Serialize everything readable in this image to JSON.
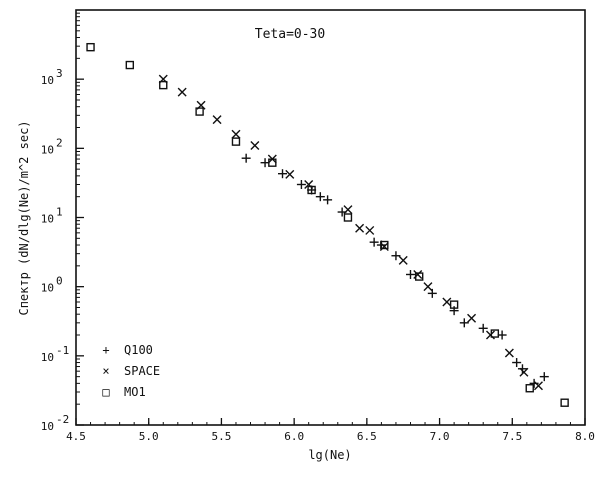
{
  "chart_data": {
    "type": "scatter",
    "title": "Teta=0-30",
    "xlabel": "lg(Ne)",
    "ylabel": "Спектр (dN/dlg(Ne)/m^2 sec)",
    "xlim": [
      4.5,
      8.0
    ],
    "ylim": [
      0.01,
      10000
    ],
    "yscale": "log",
    "grid": false,
    "legend_position": "bottom-left",
    "x_ticks": [
      "4.5",
      "5.0",
      "5.5",
      "6.0",
      "6.5",
      "7.0",
      "7.5",
      "8.0"
    ],
    "y_ticks": [
      {
        "base": "10",
        "exp": "-2",
        "value": 0.01
      },
      {
        "base": "10",
        "exp": "-1",
        "value": 0.1
      },
      {
        "base": "10",
        "exp": "0",
        "value": 1
      },
      {
        "base": "10",
        "exp": "1",
        "value": 10
      },
      {
        "base": "10",
        "exp": "2",
        "value": 100
      },
      {
        "base": "10",
        "exp": "3",
        "value": 1000
      }
    ],
    "series": [
      {
        "name": "Q100",
        "marker": "plus",
        "points": [
          {
            "x": 5.67,
            "y": 72
          },
          {
            "x": 5.8,
            "y": 62
          },
          {
            "x": 5.92,
            "y": 43
          },
          {
            "x": 6.05,
            "y": 30
          },
          {
            "x": 6.12,
            "y": 25
          },
          {
            "x": 6.18,
            "y": 20
          },
          {
            "x": 6.23,
            "y": 18
          },
          {
            "x": 6.33,
            "y": 12
          },
          {
            "x": 6.55,
            "y": 4.4
          },
          {
            "x": 6.6,
            "y": 4.0
          },
          {
            "x": 6.7,
            "y": 2.8
          },
          {
            "x": 6.8,
            "y": 1.5
          },
          {
            "x": 6.95,
            "y": 0.8
          },
          {
            "x": 7.1,
            "y": 0.45
          },
          {
            "x": 7.17,
            "y": 0.3
          },
          {
            "x": 7.3,
            "y": 0.25
          },
          {
            "x": 7.43,
            "y": 0.2
          },
          {
            "x": 7.53,
            "y": 0.08
          },
          {
            "x": 7.57,
            "y": 0.065
          },
          {
            "x": 7.65,
            "y": 0.04
          },
          {
            "x": 7.72,
            "y": 0.05
          }
        ]
      },
      {
        "name": "SPACE",
        "marker": "cross",
        "points": [
          {
            "x": 5.1,
            "y": 1000
          },
          {
            "x": 5.23,
            "y": 650
          },
          {
            "x": 5.36,
            "y": 420
          },
          {
            "x": 5.47,
            "y": 260
          },
          {
            "x": 5.6,
            "y": 160
          },
          {
            "x": 5.73,
            "y": 110
          },
          {
            "x": 5.85,
            "y": 70
          },
          {
            "x": 5.97,
            "y": 42
          },
          {
            "x": 6.1,
            "y": 30
          },
          {
            "x": 6.37,
            "y": 13
          },
          {
            "x": 6.45,
            "y": 7
          },
          {
            "x": 6.52,
            "y": 6.5
          },
          {
            "x": 6.62,
            "y": 3.8
          },
          {
            "x": 6.75,
            "y": 2.4
          },
          {
            "x": 6.85,
            "y": 1.5
          },
          {
            "x": 6.92,
            "y": 1.0
          },
          {
            "x": 7.05,
            "y": 0.6
          },
          {
            "x": 7.22,
            "y": 0.35
          },
          {
            "x": 7.35,
            "y": 0.2
          },
          {
            "x": 7.48,
            "y": 0.11
          },
          {
            "x": 7.58,
            "y": 0.058
          },
          {
            "x": 7.68,
            "y": 0.037
          }
        ]
      },
      {
        "name": "MO1",
        "marker": "square",
        "points": [
          {
            "x": 4.6,
            "y": 2900
          },
          {
            "x": 4.87,
            "y": 1600
          },
          {
            "x": 5.1,
            "y": 820
          },
          {
            "x": 5.35,
            "y": 340
          },
          {
            "x": 5.6,
            "y": 125
          },
          {
            "x": 5.85,
            "y": 62
          },
          {
            "x": 6.12,
            "y": 25
          },
          {
            "x": 6.37,
            "y": 10
          },
          {
            "x": 6.62,
            "y": 4.0
          },
          {
            "x": 6.86,
            "y": 1.4
          },
          {
            "x": 7.1,
            "y": 0.55
          },
          {
            "x": 7.38,
            "y": 0.21
          },
          {
            "x": 7.62,
            "y": 0.034
          },
          {
            "x": 7.86,
            "y": 0.021
          }
        ]
      }
    ]
  },
  "legend": {
    "items": [
      {
        "label": "Q100",
        "symbol": "+"
      },
      {
        "label": "SPACE",
        "symbol": "×"
      },
      {
        "label": "MO1",
        "symbol": "□"
      }
    ]
  }
}
